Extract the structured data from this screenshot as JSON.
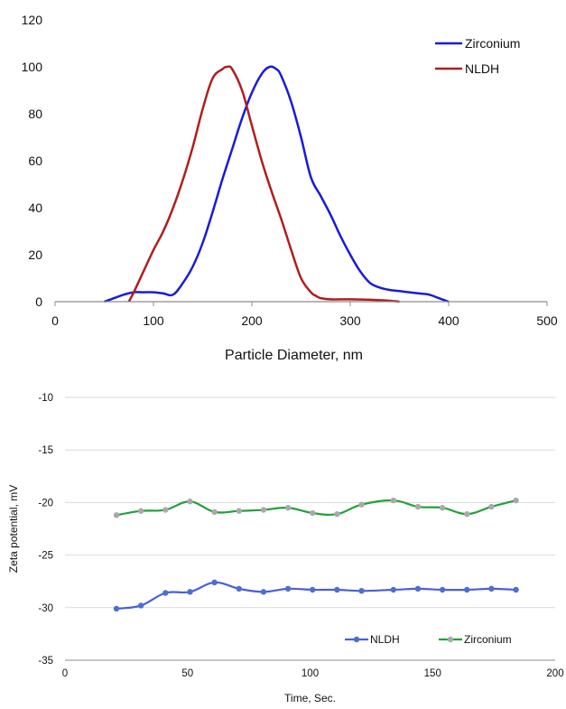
{
  "chart_data": [
    {
      "type": "line",
      "title": "",
      "xlabel": "Particle Diameter, nm",
      "ylabel": "",
      "xlim": [
        0,
        500
      ],
      "ylim": [
        0,
        120
      ],
      "xticks": [
        0,
        100,
        200,
        300,
        400,
        500
      ],
      "yticks": [
        0,
        20,
        40,
        60,
        80,
        100,
        120
      ],
      "grid": false,
      "legend_position": "top-right",
      "series": [
        {
          "name": "Zirconium",
          "color": "#1a1adb",
          "x": [
            50,
            60,
            70,
            80,
            90,
            100,
            110,
            120,
            130,
            140,
            150,
            160,
            170,
            180,
            190,
            200,
            210,
            218,
            225,
            230,
            240,
            250,
            260,
            270,
            280,
            290,
            300,
            310,
            320,
            330,
            340,
            350,
            360,
            370,
            380,
            390,
            400
          ],
          "y": [
            0,
            1.5,
            3,
            4,
            4,
            4,
            3.5,
            3,
            8,
            15,
            25,
            38,
            52,
            65,
            78,
            89,
            97,
            100,
            99,
            96,
            85,
            70,
            53,
            45,
            37,
            28,
            20,
            13,
            8,
            6,
            5,
            4.5,
            4,
            3.5,
            3,
            1.5,
            0
          ]
        },
        {
          "name": "NLDH",
          "color": "#b01e1e",
          "x": [
            75,
            80,
            90,
            100,
            110,
            120,
            130,
            140,
            150,
            160,
            170,
            175,
            180,
            190,
            200,
            210,
            220,
            230,
            240,
            250,
            260,
            265,
            270,
            280,
            290,
            300,
            320,
            340,
            350
          ],
          "y": [
            0,
            4,
            13,
            22,
            30,
            40,
            52,
            66,
            82,
            95,
            99,
            100,
            99,
            90,
            75,
            60,
            47,
            35,
            22,
            10,
            4,
            2.5,
            1.5,
            1,
            1,
            1,
            0.8,
            0.4,
            0
          ]
        }
      ]
    },
    {
      "type": "line",
      "title": "",
      "xlabel": "Time, Sec.",
      "ylabel": "Zeta potential, mV",
      "xlim": [
        0,
        200
      ],
      "ylim": [
        -35,
        -10
      ],
      "xticks": [
        0,
        50,
        100,
        150,
        200
      ],
      "yticks": [
        -35,
        -30,
        -25,
        -20,
        -15,
        -10
      ],
      "grid": true,
      "legend_position": "bottom-right",
      "series": [
        {
          "name": "NLDH",
          "color": "#4a5fd6",
          "marker_color": "#4a6fd0",
          "x": [
            21,
            31,
            41,
            51,
            61,
            71,
            81,
            91,
            101,
            111,
            121,
            134,
            144,
            154,
            164,
            174,
            184
          ],
          "y": [
            -30.1,
            -29.8,
            -28.6,
            -28.5,
            -27.6,
            -28.2,
            -28.5,
            -28.2,
            -28.3,
            -28.3,
            -28.4,
            -28.3,
            -28.2,
            -28.3,
            -28.3,
            -28.2,
            -28.3
          ]
        },
        {
          "name": "Zirconium",
          "color": "#22a03a",
          "marker_color": "#a9a9a9",
          "x": [
            21,
            31,
            41,
            51,
            61,
            71,
            81,
            91,
            101,
            111,
            121,
            134,
            144,
            154,
            164,
            174,
            184
          ],
          "y": [
            -21.2,
            -20.8,
            -20.7,
            -19.9,
            -20.9,
            -20.8,
            -20.7,
            -20.5,
            -21.0,
            -21.1,
            -20.2,
            -19.8,
            -20.4,
            -20.5,
            -21.1,
            -20.4,
            -19.8
          ]
        }
      ]
    }
  ]
}
